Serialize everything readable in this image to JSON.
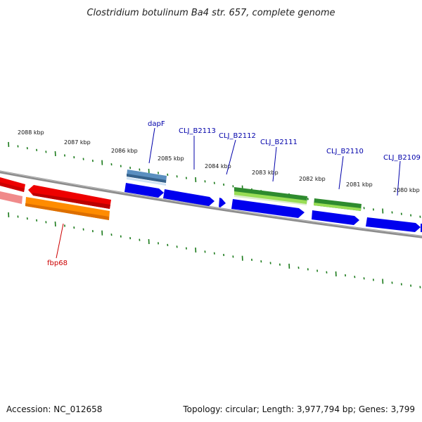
{
  "title": "Clostridium botulinum Ba4 str. 657, complete genome",
  "footer": {
    "accession": "Accession: NC_012658",
    "summary": "Topology: circular; Length: 3,977,794 bp; Genes: 3,799"
  },
  "ticks": [
    "2088 kbp",
    "2087 kbp",
    "2086 kbp",
    "2085 kbp",
    "2084 kbp",
    "2083 kbp",
    "2082 kbp",
    "2081 kbp",
    "2080 kbp"
  ],
  "gene_labels": [
    {
      "text": "dapF",
      "color": "#0000aa"
    },
    {
      "text": "CLJ_B2113",
      "color": "#0000aa"
    },
    {
      "text": "CLJ_B2112",
      "color": "#0000aa"
    },
    {
      "text": "CLJ_B2111",
      "color": "#0000aa"
    },
    {
      "text": "CLJ_B2110",
      "color": "#0000aa"
    },
    {
      "text": "CLJ_B2109",
      "color": "#0000aa"
    },
    {
      "text": "fbp68",
      "color": "#cc0000"
    }
  ],
  "colors": {
    "backbone": "#888888",
    "tick": "#1a7a1a",
    "cds_blue": "#0000ee",
    "rna_green": "#2e8b2e",
    "red": "#ee0000",
    "orange": "#ff8800",
    "steel": "#4a7fb0"
  }
}
